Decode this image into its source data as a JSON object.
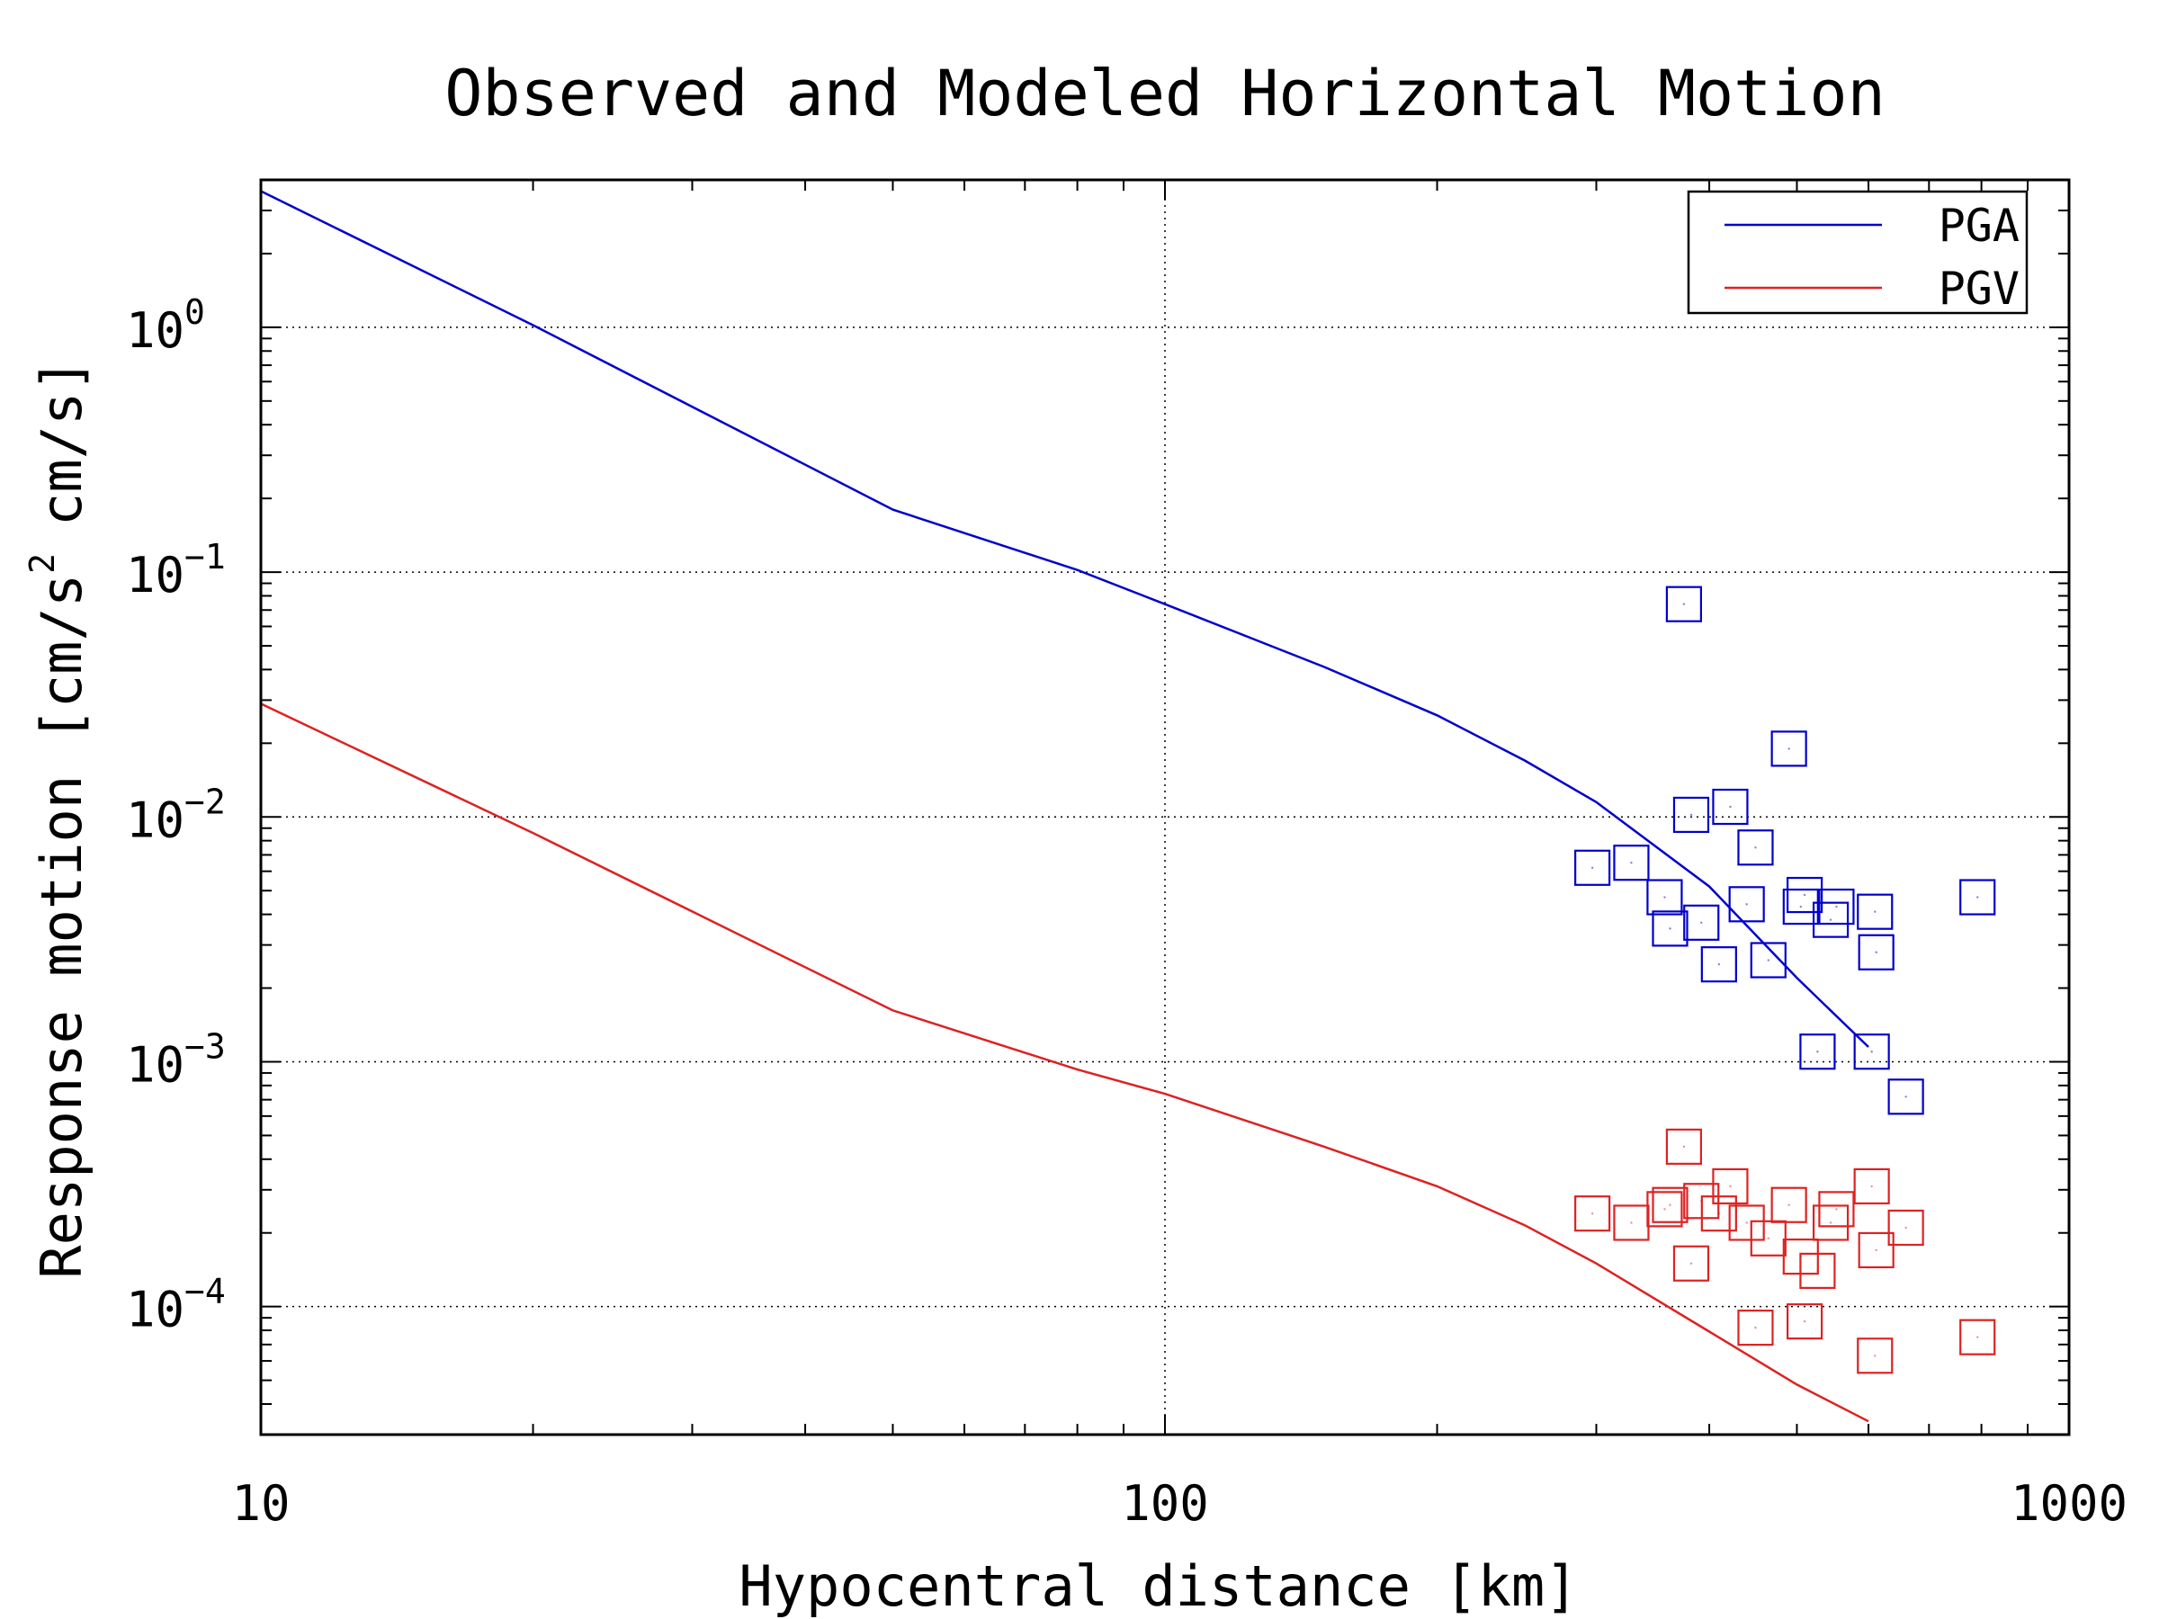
{
  "chart_data": {
    "type": "line",
    "title": "Observed and Modeled Horizontal Motion",
    "xlabel": "Hypocentral distance [km]",
    "ylabel": "Response motion [cm/s",
    "ylabel_sup": "2",
    "ylabel_tail": "cm/s]",
    "x_scale": "log",
    "y_scale": "log",
    "xlim": [
      10,
      1000
    ],
    "ylim": [
      3e-05,
      4
    ],
    "grid": true,
    "legend_position": "top-right",
    "x_ticks": [
      {
        "value": 10,
        "label": "10"
      },
      {
        "value": 100,
        "label": "100"
      },
      {
        "value": 1000,
        "label": "1000"
      }
    ],
    "y_ticks": [
      {
        "value": 1,
        "base": "10",
        "exp": "0"
      },
      {
        "value": 0.1,
        "base": "10",
        "exp": "−1"
      },
      {
        "value": 0.01,
        "base": "10",
        "exp": "−2"
      },
      {
        "value": 0.001,
        "base": "10",
        "exp": "−3"
      },
      {
        "value": 0.0001,
        "base": "10",
        "exp": "−4"
      }
    ],
    "series": [
      {
        "name": "PGA",
        "color": "#0000cc",
        "line": {
          "x": [
            10,
            20,
            50,
            80,
            100,
            150,
            200,
            250,
            300,
            400,
            500,
            600
          ],
          "y": [
            3.6,
            1.02,
            0.18,
            0.102,
            0.074,
            0.041,
            0.026,
            0.017,
            0.0115,
            0.0052,
            0.0022,
            0.00115
          ]
        },
        "observed": {
          "x": [
            297,
            328,
            357,
            362,
            375,
            382,
            392,
            410,
            422,
            440,
            450,
            465,
            490,
            505,
            510,
            527,
            545,
            553,
            605,
            610,
            612,
            660,
            792
          ],
          "y": [
            0.0062,
            0.0065,
            0.0047,
            0.0035,
            0.074,
            0.0102,
            0.0037,
            0.0025,
            0.011,
            0.0044,
            0.0075,
            0.0026,
            0.019,
            0.0043,
            0.0048,
            0.0011,
            0.0038,
            0.0043,
            0.0011,
            0.0041,
            0.0028,
            0.00072,
            0.0047
          ]
        }
      },
      {
        "name": "PGV",
        "color": "#dd2222",
        "line": {
          "x": [
            10,
            20,
            50,
            80,
            100,
            150,
            200,
            250,
            300,
            400,
            500,
            600
          ],
          "y": [
            0.029,
            0.0086,
            0.00162,
            0.00093,
            0.00074,
            0.00045,
            0.00031,
            0.000215,
            0.00015,
            7.9e-05,
            4.8e-05,
            3.4e-05
          ]
        },
        "observed": {
          "x": [
            297,
            328,
            357,
            362,
            375,
            382,
            392,
            410,
            422,
            440,
            450,
            465,
            490,
            505,
            510,
            527,
            545,
            553,
            605,
            610,
            612,
            660,
            792
          ],
          "y": [
            0.00024,
            0.00022,
            0.00025,
            0.00026,
            0.00045,
            0.00015,
            0.00027,
            0.00024,
            0.00031,
            0.00022,
            8.2e-05,
            0.00019,
            0.00026,
            0.00016,
            8.7e-05,
            0.00014,
            0.00022,
            0.00025,
            0.00031,
            6.3e-05,
            0.00017,
            0.00021,
            7.5e-05
          ]
        }
      }
    ]
  }
}
